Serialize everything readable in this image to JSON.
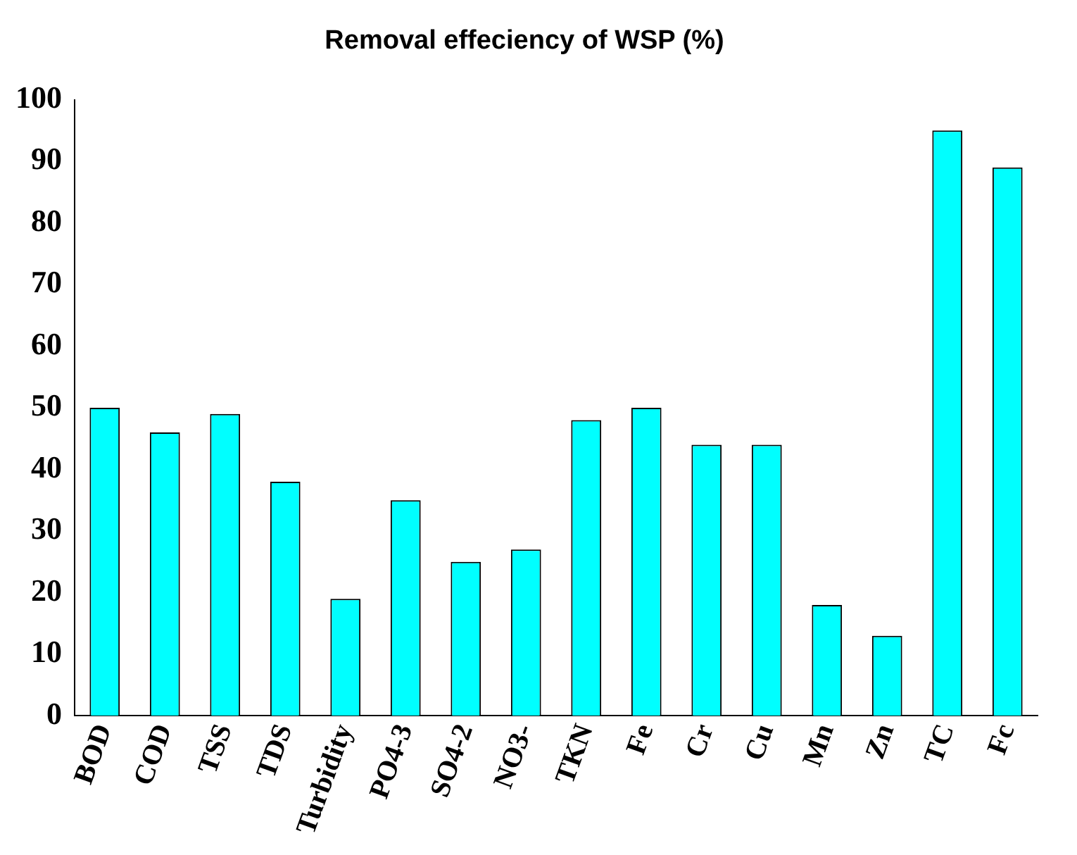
{
  "chart_data": {
    "type": "bar",
    "title": "Removal effeciency of WSP (%)",
    "categories": [
      "BOD",
      "COD",
      "TSS",
      "TDS",
      "Turbidity",
      "PO4-3",
      "SO4-2",
      "NO3-",
      "TKN",
      "Fe",
      "Cr",
      "Cu",
      "Mn",
      "Zn",
      "TC",
      "Fc"
    ],
    "values": [
      50,
      46,
      49,
      38,
      19,
      35,
      25,
      27,
      48,
      50,
      44,
      44,
      18,
      13,
      95,
      89
    ],
    "color": "#00ffff",
    "ylim": [
      0,
      100
    ],
    "yticks": [
      0,
      10,
      20,
      30,
      40,
      50,
      60,
      70,
      80,
      90,
      100
    ],
    "grid": false,
    "legend": false
  }
}
